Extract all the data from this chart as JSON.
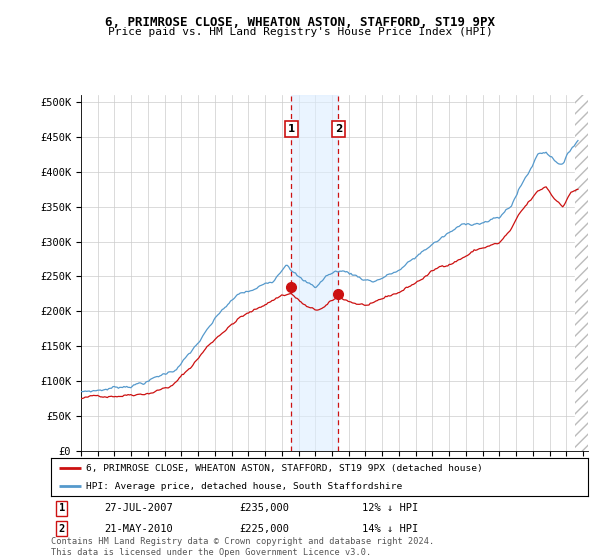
{
  "title": "6, PRIMROSE CLOSE, WHEATON ASTON, STAFFORD, ST19 9PX",
  "subtitle": "Price paid vs. HM Land Registry's House Price Index (HPI)",
  "xlim_start": 1995.0,
  "xlim_end": 2025.3,
  "ylim": [
    0,
    510000
  ],
  "yticks": [
    0,
    50000,
    100000,
    150000,
    200000,
    250000,
    300000,
    350000,
    400000,
    450000,
    500000
  ],
  "ytick_labels": [
    "£0",
    "£50K",
    "£100K",
    "£150K",
    "£200K",
    "£250K",
    "£300K",
    "£350K",
    "£400K",
    "£450K",
    "£500K"
  ],
  "hpi_color": "#5599cc",
  "price_color": "#cc1111",
  "marker1_date": 2007.57,
  "marker1_price": 235000,
  "marker2_date": 2010.38,
  "marker2_price": 225000,
  "legend_line1": "6, PRIMROSE CLOSE, WHEATON ASTON, STAFFORD, ST19 9PX (detached house)",
  "legend_line2": "HPI: Average price, detached house, South Staffordshire",
  "marker1_row": "27-JUL-2007",
  "marker1_amount": "£235,000",
  "marker1_pct": "12% ↓ HPI",
  "marker2_row": "21-MAY-2010",
  "marker2_amount": "£225,000",
  "marker2_pct": "14% ↓ HPI",
  "footer": "Contains HM Land Registry data © Crown copyright and database right 2024.\nThis data is licensed under the Open Government Licence v3.0.",
  "shaded_region_color": "#ddeeff",
  "shaded_region_alpha": 0.6,
  "grid_color": "#cccccc",
  "hatch_start": 2024.5
}
